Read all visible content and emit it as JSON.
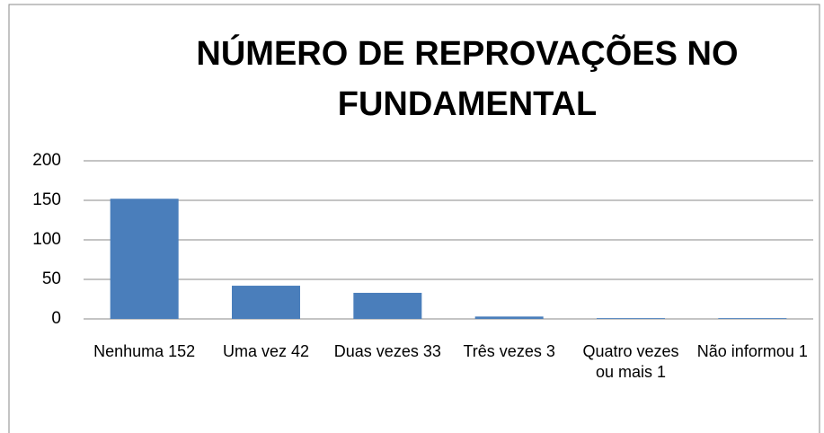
{
  "chart_data": {
    "type": "bar",
    "title": "NÚMERO DE REPROVAÇÕES NO FUNDAMENTAL",
    "categories": [
      "Nenhuma 152",
      "Uma vez 42",
      "Duas vezes 33",
      "Três vezes 3",
      "Quatro vezes ou mais 1",
      "Não informou 1"
    ],
    "values": [
      152,
      42,
      33,
      3,
      1,
      1
    ],
    "color": "#4a7ebb",
    "ylim": [
      0,
      200
    ],
    "yticks": [
      0,
      50,
      100,
      150,
      200
    ],
    "grid": true
  }
}
